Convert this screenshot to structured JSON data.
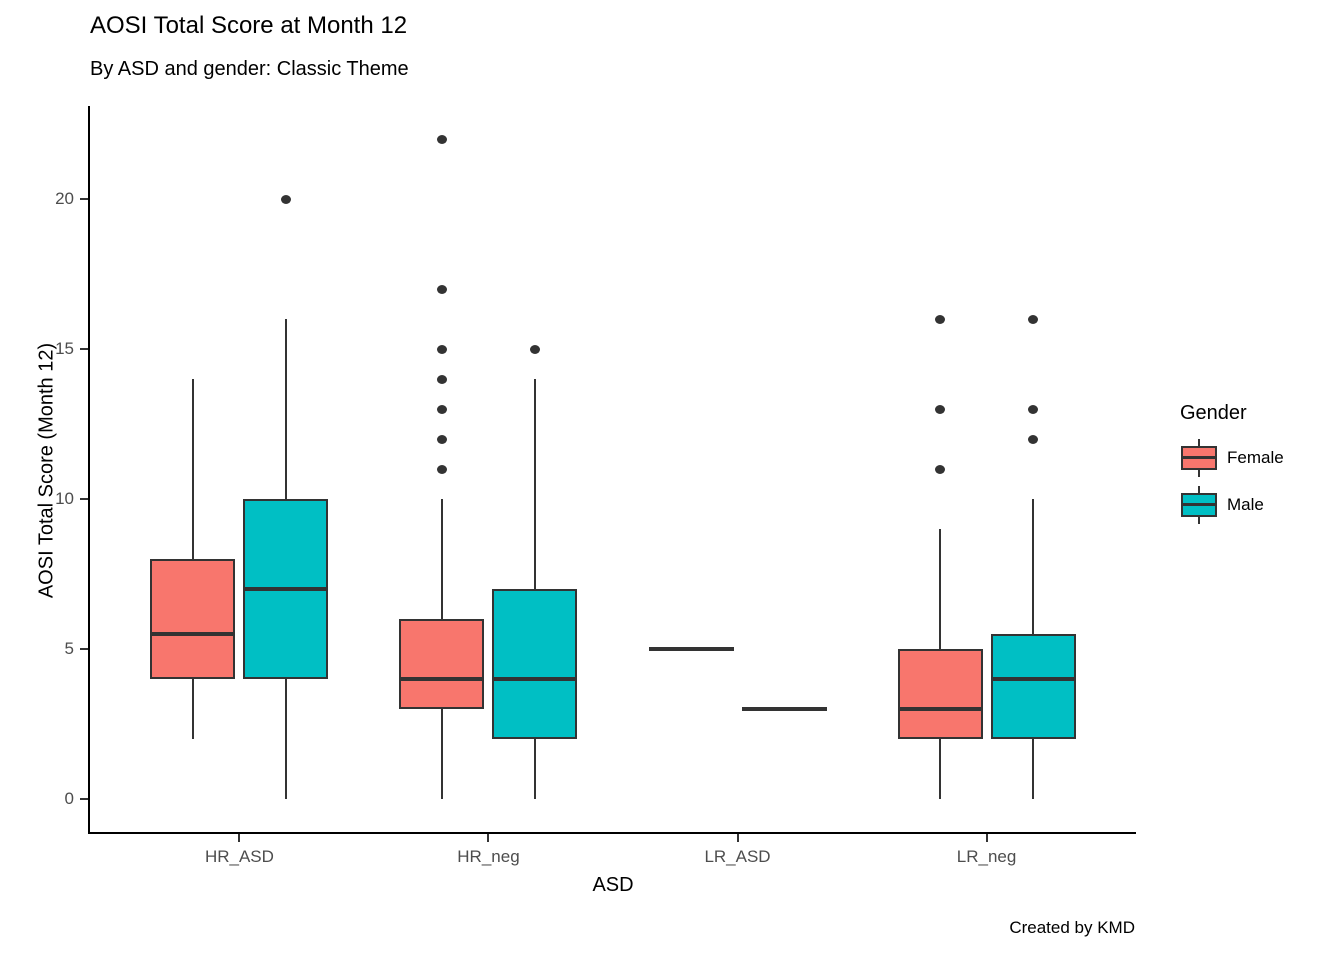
{
  "chart_data": {
    "type": "boxplot",
    "title": "AOSI Total Score at Month 12",
    "subtitle": "By ASD and gender: Classic Theme",
    "caption": "Created by KMD",
    "xlabel": "ASD",
    "ylabel": "AOSI Total Score (Month 12)",
    "categories": [
      "HR_ASD",
      "HR_neg",
      "LR_ASD",
      "LR_neg"
    ],
    "y_ticks": [
      0,
      5,
      10,
      15,
      20
    ],
    "ylim": [
      -1.1,
      23.1
    ],
    "grid": "off",
    "theme": "classic",
    "legend": {
      "title": "Gender",
      "position": "right"
    },
    "colors": {
      "outline": "#333333",
      "axis_text": "#4d4d4d",
      "axis_line": "#000000",
      "background": "#ffffff"
    },
    "series": [
      {
        "name": "Female",
        "color": "#F8766D",
        "boxes": [
          {
            "category": "HR_ASD",
            "whisker_low": 2,
            "q1": 4,
            "median": 5.5,
            "q3": 8,
            "whisker_high": 14,
            "outliers": []
          },
          {
            "category": "HR_neg",
            "whisker_low": 0,
            "q1": 3,
            "median": 4,
            "q3": 6,
            "whisker_high": 10,
            "outliers": [
              11,
              12,
              13,
              14,
              15,
              17,
              22
            ]
          },
          {
            "category": "LR_ASD",
            "whisker_low": 5,
            "q1": 5,
            "median": 5,
            "q3": 5,
            "whisker_high": 5,
            "outliers": []
          },
          {
            "category": "LR_neg",
            "whisker_low": 0,
            "q1": 2,
            "median": 3,
            "q3": 5,
            "whisker_high": 9,
            "outliers": [
              11,
              13,
              16
            ]
          }
        ]
      },
      {
        "name": "Male",
        "color": "#00BFC4",
        "boxes": [
          {
            "category": "HR_ASD",
            "whisker_low": 0,
            "q1": 4,
            "median": 7,
            "q3": 10,
            "whisker_high": 16,
            "outliers": [
              20
            ]
          },
          {
            "category": "HR_neg",
            "whisker_low": 0,
            "q1": 2,
            "median": 4,
            "q3": 7,
            "whisker_high": 14,
            "outliers": [
              15
            ]
          },
          {
            "category": "LR_ASD",
            "whisker_low": 3,
            "q1": 3,
            "median": 3,
            "q3": 3,
            "whisker_high": 3,
            "outliers": []
          },
          {
            "category": "LR_neg",
            "whisker_low": 0,
            "q1": 2,
            "median": 4,
            "q3": 5.5,
            "whisker_high": 10,
            "outliers": [
              12,
              13,
              16
            ]
          }
        ]
      }
    ]
  }
}
